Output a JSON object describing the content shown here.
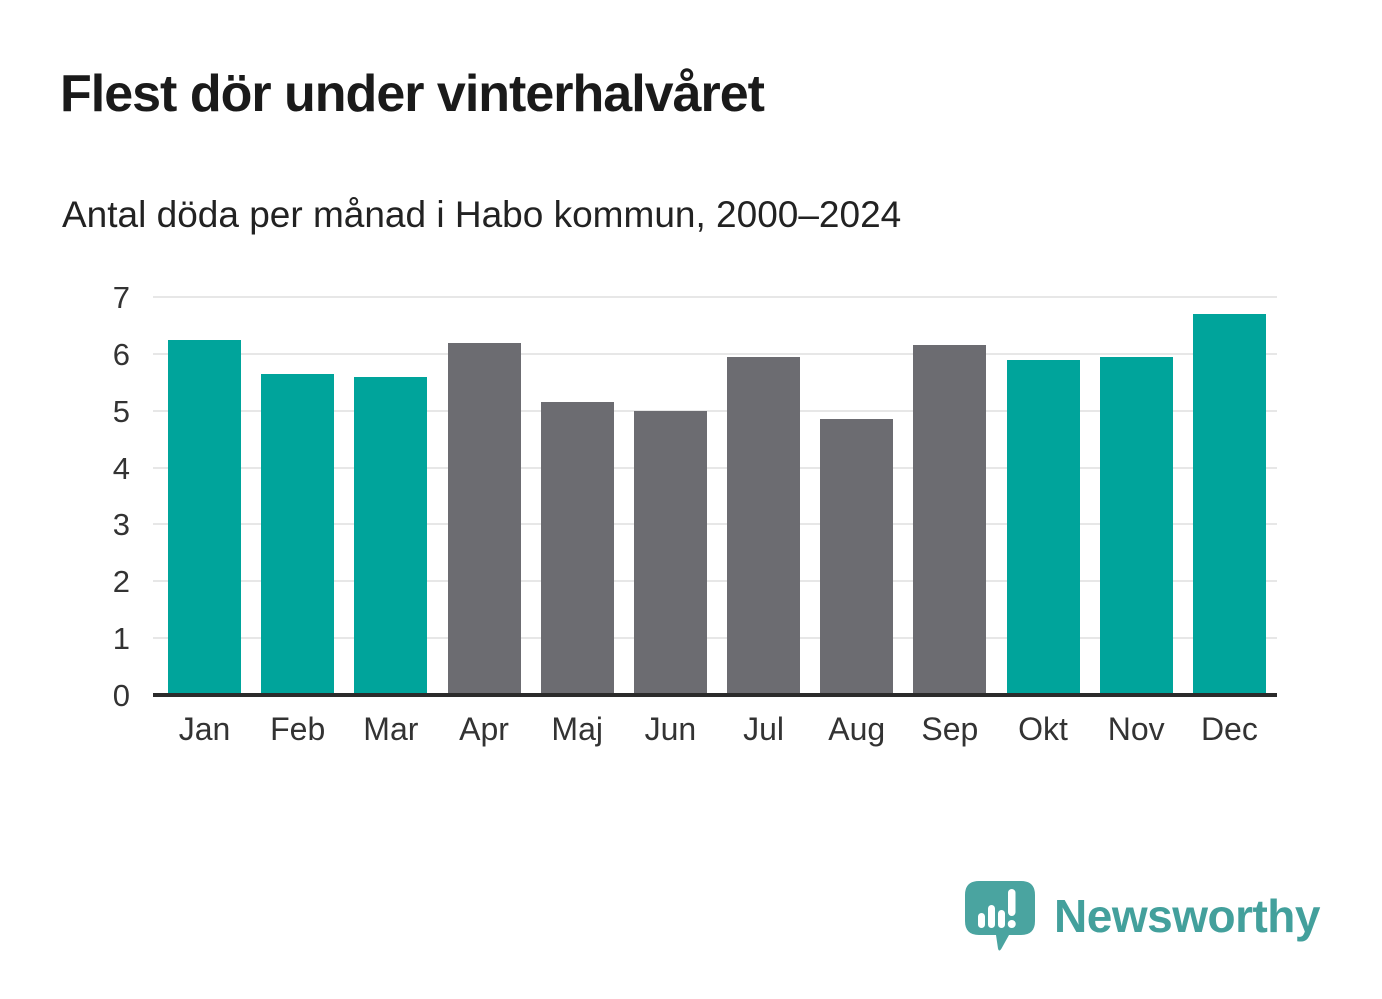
{
  "header": {
    "title": "Flest dör under vinterhalvåret",
    "subtitle": "Antal döda per månad i Habo kommun, 2000–2024"
  },
  "chart_data": {
    "type": "bar",
    "categories": [
      "Jan",
      "Feb",
      "Mar",
      "Apr",
      "Maj",
      "Jun",
      "Jul",
      "Aug",
      "Sep",
      "Okt",
      "Nov",
      "Dec"
    ],
    "values": [
      6.25,
      5.65,
      5.6,
      6.2,
      5.15,
      5.0,
      5.95,
      4.85,
      6.15,
      5.9,
      5.95,
      6.7
    ],
    "bar_color_keys": [
      "teal",
      "teal",
      "teal",
      "gray",
      "gray",
      "gray",
      "gray",
      "gray",
      "gray",
      "teal",
      "teal",
      "teal"
    ],
    "colors": {
      "teal": "#00a49b",
      "gray": "#6c6c71"
    },
    "title": "Flest dör under vinterhalvåret",
    "subtitle": "Antal döda per månad i Habo kommun, 2000–2024",
    "xlabel": "",
    "ylabel": "",
    "ylim": [
      0,
      7
    ],
    "yticks": [
      0,
      1,
      2,
      3,
      4,
      5,
      6,
      7
    ],
    "grid": true,
    "legend": false,
    "gridline_color": "#e7e7e7",
    "axis_line_color": "#2b2b2b"
  },
  "footer": {
    "brand": "Newsworthy",
    "brand_color": "#43a09c",
    "logo_color": "#4aa4a0",
    "logo_icon": "bar-chart-speech-bubble-icon"
  }
}
